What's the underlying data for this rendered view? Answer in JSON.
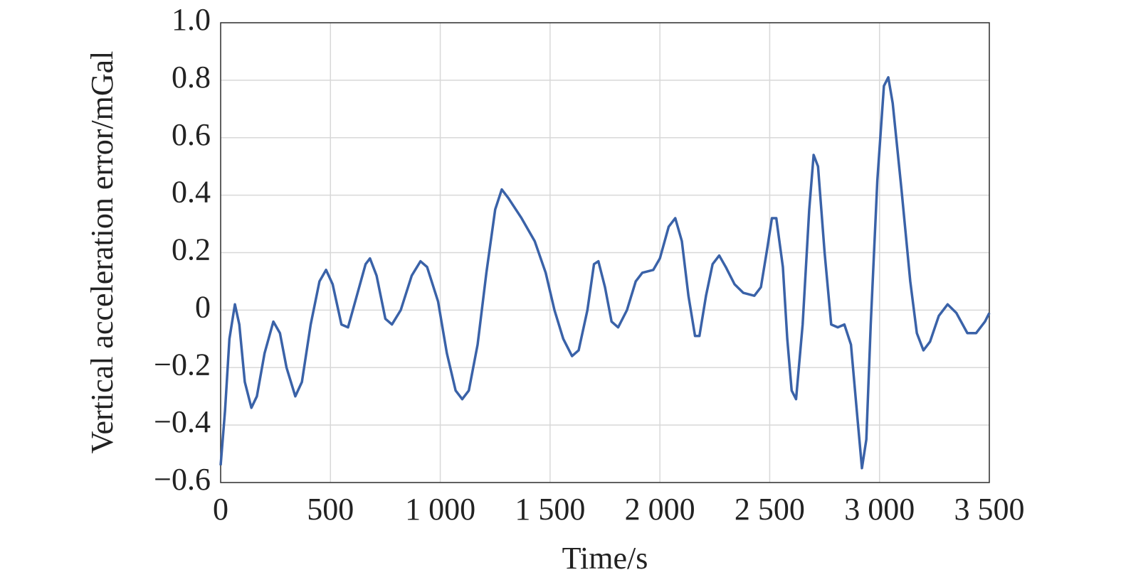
{
  "chart_data": {
    "type": "line",
    "xlabel": "Time/s",
    "ylabel": "Vertical acceleration error/mGal",
    "x": [
      0,
      20,
      40,
      65,
      85,
      110,
      140,
      165,
      200,
      240,
      270,
      300,
      340,
      370,
      410,
      450,
      480,
      510,
      550,
      580,
      620,
      660,
      680,
      710,
      750,
      780,
      820,
      870,
      910,
      940,
      990,
      1030,
      1070,
      1100,
      1130,
      1170,
      1210,
      1250,
      1280,
      1310,
      1370,
      1430,
      1480,
      1520,
      1560,
      1600,
      1630,
      1670,
      1700,
      1720,
      1750,
      1780,
      1810,
      1850,
      1890,
      1920,
      1970,
      2000,
      2040,
      2070,
      2100,
      2130,
      2160,
      2180,
      2210,
      2240,
      2270,
      2300,
      2340,
      2380,
      2430,
      2460,
      2490,
      2510,
      2530,
      2560,
      2580,
      2600,
      2620,
      2650,
      2680,
      2700,
      2720,
      2750,
      2780,
      2810,
      2840,
      2870,
      2900,
      2920,
      2940,
      2960,
      2990,
      3020,
      3040,
      3060,
      3100,
      3140,
      3170,
      3200,
      3230,
      3270,
      3310,
      3350,
      3400,
      3440,
      3480,
      3500
    ],
    "series": [
      {
        "color": "#3a62a8",
        "values": [
          -0.54,
          -0.35,
          -0.1,
          0.02,
          -0.05,
          -0.25,
          -0.34,
          -0.3,
          -0.15,
          -0.04,
          -0.08,
          -0.2,
          -0.3,
          -0.25,
          -0.05,
          0.1,
          0.14,
          0.09,
          -0.05,
          -0.06,
          0.05,
          0.16,
          0.18,
          0.12,
          -0.03,
          -0.05,
          0.0,
          0.12,
          0.17,
          0.15,
          0.03,
          -0.15,
          -0.28,
          -0.31,
          -0.28,
          -0.12,
          0.13,
          0.35,
          0.42,
          0.39,
          0.32,
          0.24,
          0.13,
          0.0,
          -0.1,
          -0.16,
          -0.14,
          0.0,
          0.16,
          0.17,
          0.08,
          -0.04,
          -0.06,
          0.0,
          0.1,
          0.13,
          0.14,
          0.18,
          0.29,
          0.32,
          0.24,
          0.05,
          -0.09,
          -0.09,
          0.05,
          0.16,
          0.19,
          0.15,
          0.09,
          0.06,
          0.05,
          0.08,
          0.22,
          0.32,
          0.32,
          0.15,
          -0.1,
          -0.28,
          -0.31,
          -0.05,
          0.35,
          0.54,
          0.5,
          0.2,
          -0.05,
          -0.06,
          -0.05,
          -0.12,
          -0.38,
          -0.55,
          -0.45,
          -0.05,
          0.45,
          0.78,
          0.81,
          0.72,
          0.42,
          0.1,
          -0.08,
          -0.14,
          -0.11,
          -0.02,
          0.02,
          -0.01,
          -0.08,
          -0.08,
          -0.04,
          -0.01
        ]
      }
    ],
    "xlim": [
      0,
      3500
    ],
    "xticks": [
      0,
      500,
      {
        "value": 1000,
        "label": "1 000"
      },
      {
        "value": 1500,
        "label": "1 500"
      },
      {
        "value": 2000,
        "label": "2 000"
      },
      {
        "value": 2500,
        "label": "2 500"
      },
      {
        "value": 3000,
        "label": "3 000"
      },
      {
        "value": 3500,
        "label": "3 500"
      }
    ],
    "ylim": [
      -0.6,
      1.0
    ],
    "yticks": [
      {
        "value": -0.6,
        "label": "−0.6"
      },
      {
        "value": -0.4,
        "label": "−0.4"
      },
      {
        "value": -0.2,
        "label": "−0.2"
      },
      0,
      0.2,
      0.4,
      0.6,
      0.8,
      {
        "value": 1.0,
        "label": "1.0"
      }
    ],
    "grid": true
  }
}
